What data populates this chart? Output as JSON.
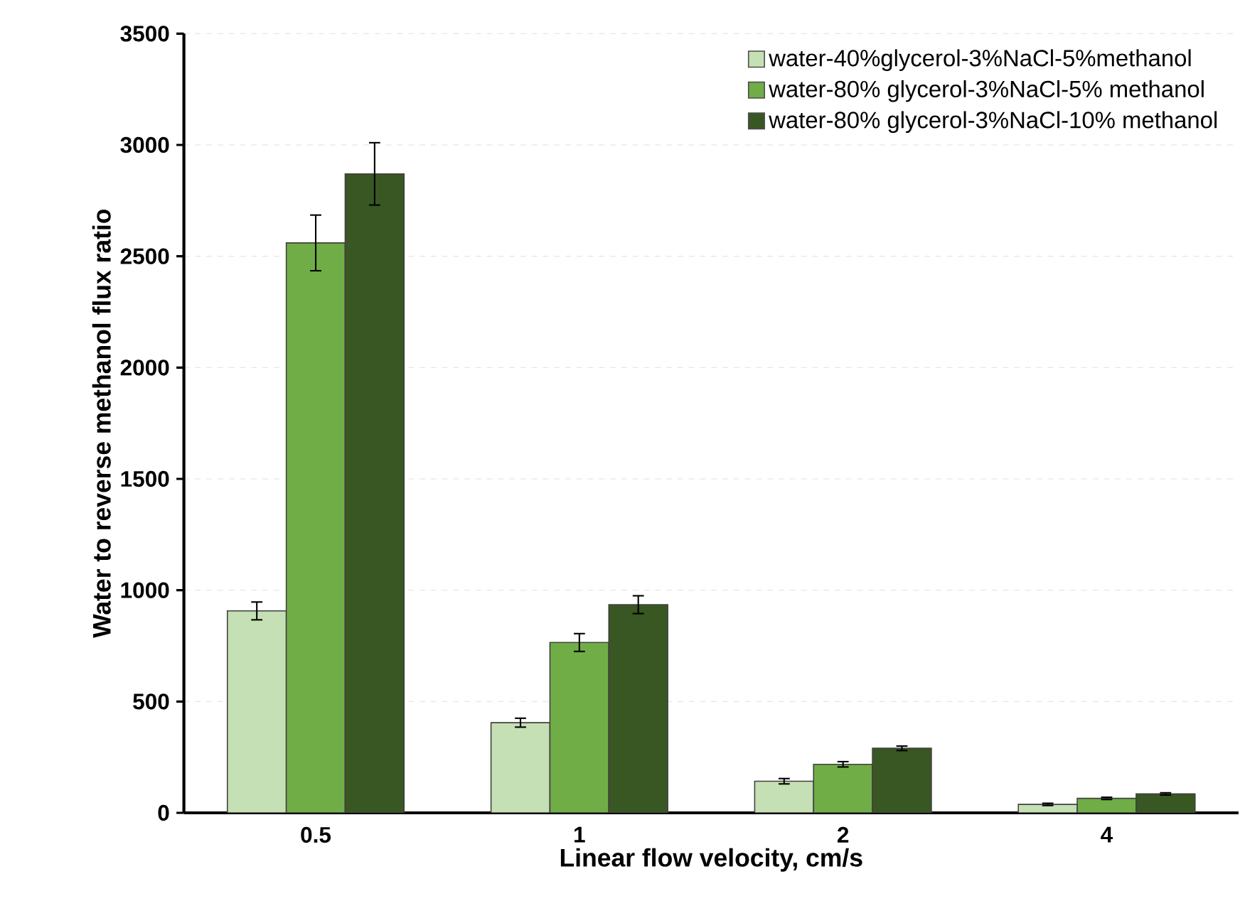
{
  "chart_data": {
    "type": "bar",
    "xlabel": "Linear flow velocity, cm/s",
    "ylabel": "Water to reverse methanol flux ratio",
    "categories": [
      "0.5",
      "1",
      "2",
      "4"
    ],
    "series": [
      {
        "name": "water-40%glycerol-3%NaCl-5%methanol",
        "color": "#c5e0b4",
        "values": [
          907,
          405,
          142,
          38
        ],
        "errors": [
          40,
          20,
          12,
          5
        ]
      },
      {
        "name": "water-80% glycerol-3%NaCl-5% methanol",
        "color": "#70ad47",
        "values": [
          2560,
          765,
          218,
          65
        ],
        "errors": [
          125,
          40,
          12,
          5
        ]
      },
      {
        "name": "water-80% glycerol-3%NaCl-10% methanol",
        "color": "#385723",
        "values": [
          2870,
          935,
          290,
          85
        ],
        "errors": [
          140,
          40,
          10,
          5
        ]
      }
    ],
    "ylim": [
      0,
      3500
    ],
    "yticks": [
      0,
      500,
      1000,
      1500,
      2000,
      2500,
      3000,
      3500
    ],
    "grid": "y",
    "legend": "top right"
  }
}
